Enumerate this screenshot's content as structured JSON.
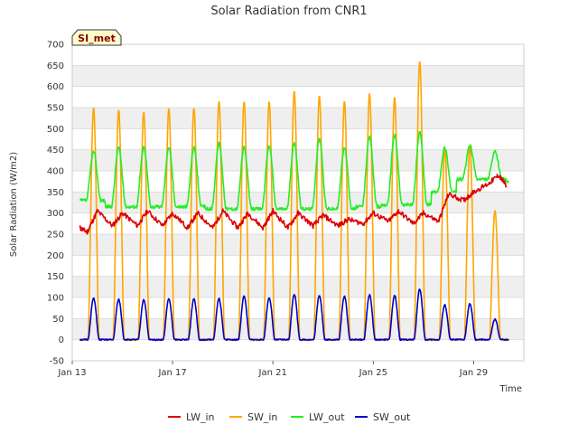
{
  "chart_data": {
    "type": "line",
    "title": "Solar Radiation from CNR1",
    "xlabel": "Time",
    "ylabel": "Solar Radiation (W/m2)",
    "badge": "SI_met",
    "ylim": [
      -50,
      700
    ],
    "yticks": [
      -50,
      0,
      50,
      100,
      150,
      200,
      250,
      300,
      350,
      400,
      450,
      500,
      550,
      600,
      650,
      700
    ],
    "xlim": [
      13,
      31
    ],
    "xticks": [
      {
        "value": 13,
        "label": "Jan 13"
      },
      {
        "value": 17,
        "label": "Jan 17"
      },
      {
        "value": 21,
        "label": "Jan 21"
      },
      {
        "value": 25,
        "label": "Jan 25"
      },
      {
        "value": 29,
        "label": "Jan 29"
      }
    ],
    "grid": true,
    "legend_position": "bottom",
    "x_unit": "day of January",
    "series": [
      {
        "name": "LW_in",
        "color": "#dd0000",
        "x": [
          13.3,
          13.6,
          14.0,
          14.6,
          15.0,
          15.6,
          16.0,
          16.6,
          17.0,
          17.6,
          18.0,
          18.6,
          19.0,
          19.6,
          20.0,
          20.6,
          21.0,
          21.6,
          22.0,
          22.6,
          23.0,
          23.6,
          24.0,
          24.6,
          25.0,
          25.6,
          26.0,
          26.6,
          27.0,
          27.6,
          28.0,
          28.6,
          29.0,
          29.6,
          30.0,
          30.3
        ],
        "y": [
          265,
          255,
          305,
          270,
          300,
          270,
          305,
          270,
          300,
          265,
          300,
          265,
          305,
          265,
          300,
          265,
          305,
          265,
          300,
          270,
          295,
          270,
          285,
          275,
          300,
          280,
          305,
          275,
          300,
          280,
          345,
          330,
          350,
          370,
          390,
          365
        ]
      },
      {
        "name": "SW_in",
        "color": "#ffa500",
        "peaks": [
          {
            "x": 13.85,
            "y": 550
          },
          {
            "x": 14.85,
            "y": 545
          },
          {
            "x": 15.85,
            "y": 540
          },
          {
            "x": 16.85,
            "y": 550
          },
          {
            "x": 17.85,
            "y": 550
          },
          {
            "x": 18.85,
            "y": 565
          },
          {
            "x": 19.85,
            "y": 565
          },
          {
            "x": 20.85,
            "y": 565
          },
          {
            "x": 21.85,
            "y": 590
          },
          {
            "x": 22.85,
            "y": 580
          },
          {
            "x": 23.85,
            "y": 565
          },
          {
            "x": 24.85,
            "y": 583
          },
          {
            "x": 25.85,
            "y": 575
          },
          {
            "x": 26.85,
            "y": 660
          },
          {
            "x": 27.85,
            "y": 455
          },
          {
            "x": 28.85,
            "y": 460
          },
          {
            "x": 29.85,
            "y": 305
          }
        ],
        "baseline": 0
      },
      {
        "name": "LW_out",
        "color": "#22ee22",
        "peaks": [
          {
            "x": 13.85,
            "y": 445
          },
          {
            "x": 14.85,
            "y": 455
          },
          {
            "x": 15.85,
            "y": 455
          },
          {
            "x": 16.85,
            "y": 455
          },
          {
            "x": 17.85,
            "y": 455
          },
          {
            "x": 18.85,
            "y": 465
          },
          {
            "x": 19.85,
            "y": 455
          },
          {
            "x": 20.85,
            "y": 460
          },
          {
            "x": 21.85,
            "y": 465
          },
          {
            "x": 22.85,
            "y": 475
          },
          {
            "x": 23.85,
            "y": 455
          },
          {
            "x": 24.85,
            "y": 480
          },
          {
            "x": 25.85,
            "y": 485
          },
          {
            "x": 26.85,
            "y": 490
          },
          {
            "x": 27.85,
            "y": 455
          },
          {
            "x": 28.85,
            "y": 460
          },
          {
            "x": 29.85,
            "y": 445
          }
        ],
        "night": [
          330,
          315,
          315,
          315,
          315,
          310,
          310,
          310,
          310,
          310,
          310,
          315,
          320,
          320,
          350,
          380,
          380,
          375
        ]
      },
      {
        "name": "SW_out",
        "color": "#0000cc",
        "peaks": [
          {
            "x": 13.85,
            "y": 98
          },
          {
            "x": 14.85,
            "y": 95
          },
          {
            "x": 15.85,
            "y": 95
          },
          {
            "x": 16.85,
            "y": 97
          },
          {
            "x": 17.85,
            "y": 97
          },
          {
            "x": 18.85,
            "y": 97
          },
          {
            "x": 19.85,
            "y": 103
          },
          {
            "x": 20.85,
            "y": 100
          },
          {
            "x": 21.85,
            "y": 108
          },
          {
            "x": 22.85,
            "y": 105
          },
          {
            "x": 23.85,
            "y": 103
          },
          {
            "x": 24.85,
            "y": 106
          },
          {
            "x": 25.85,
            "y": 105
          },
          {
            "x": 26.85,
            "y": 120
          },
          {
            "x": 27.85,
            "y": 82
          },
          {
            "x": 28.85,
            "y": 85
          },
          {
            "x": 29.85,
            "y": 48
          }
        ],
        "baseline": 0
      }
    ]
  }
}
